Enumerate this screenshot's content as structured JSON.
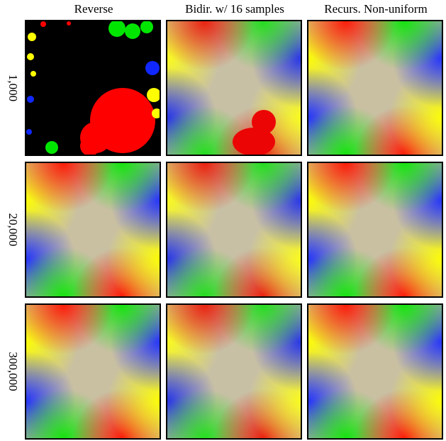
{
  "columns": [
    "Reverse",
    "Bidir. w/ 16 samples",
    "Recurs. Non-uniform"
  ],
  "rows": [
    "1,000",
    "20,000",
    "300,000"
  ]
}
